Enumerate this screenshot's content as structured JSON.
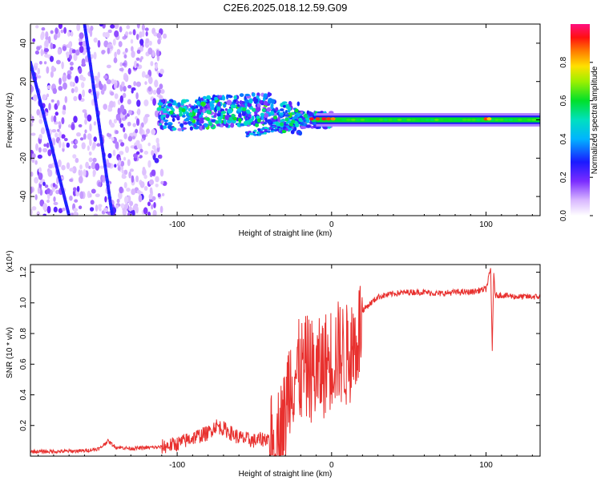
{
  "title": "C2E6.2025.018.12.59.G09",
  "colors": {
    "snr_line": "#e8302e",
    "track_trace": "#2a12e0",
    "frame": "#000000",
    "background": "#ffffff"
  },
  "chart_data": [
    {
      "type": "heatmap",
      "name": "spectrogram",
      "xlabel": "Height of straight line (km)",
      "ylabel": "Frequency (Hz)",
      "xlim": [
        -195,
        135
      ],
      "ylim": [
        -50,
        50
      ],
      "xticks": [
        -100,
        0,
        100
      ],
      "xtick_labels": [
        "-100",
        "0",
        "100"
      ],
      "yticks": [
        40,
        20,
        0,
        -20,
        -40
      ],
      "ytick_labels": [
        "40",
        "20",
        "0",
        "-20",
        "-40"
      ],
      "colorbar": {
        "label": "Normalized spectral amplitude",
        "range": [
          0,
          1
        ],
        "ticks": [
          0.0,
          0.2,
          0.4,
          0.6,
          0.8
        ],
        "tick_labels": [
          "0.0",
          "0.2",
          "0.4",
          "0.6",
          "0.8"
        ],
        "colormap": "rainbow (white-violet-blue-cyan-green-yellow-red-magenta)"
      },
      "features": [
        {
          "name": "steep-streak-1",
          "from": [
            -195,
            30
          ],
          "to": [
            -170,
            -50
          ]
        },
        {
          "name": "steep-streak-2",
          "from": [
            -160,
            50
          ],
          "to": [
            -142,
            -50
          ]
        },
        {
          "name": "noisy-scatter",
          "x_range": [
            -195,
            -110
          ],
          "y_range": [
            -50,
            50
          ]
        },
        {
          "name": "central-band",
          "x_range": [
            -110,
            0
          ],
          "y_range": [
            -15,
            15
          ]
        },
        {
          "name": "stable-band",
          "x_range": [
            0,
            135
          ],
          "center_hz": 0,
          "width_hz": 3
        }
      ]
    },
    {
      "type": "line",
      "name": "snr",
      "xlabel": "Height of straight line (km)",
      "ylabel": "SNR (10 * v/v)",
      "multiplier_label": "(x10⁴)",
      "xlim": [
        -195,
        135
      ],
      "ylim": [
        0,
        1.25
      ],
      "xticks": [
        -100,
        0,
        100
      ],
      "xtick_labels": [
        "-100",
        "0",
        "100"
      ],
      "yticks": [
        0.2,
        0.4,
        0.6,
        0.8,
        1.0,
        1.2
      ],
      "ytick_labels": [
        "0.2",
        "0.4",
        "0.6",
        "0.8",
        "1.0",
        "1.2"
      ],
      "series": [
        {
          "name": "SNR",
          "x": [
            -195,
            -180,
            -160,
            -150,
            -145,
            -140,
            -130,
            -110,
            -100,
            -90,
            -80,
            -75,
            -70,
            -60,
            -50,
            -40,
            -35,
            -30,
            -28,
            -25,
            -20,
            -15,
            -10,
            -5,
            0,
            5,
            10,
            15,
            20,
            30,
            40,
            50,
            60,
            70,
            80,
            90,
            100,
            103,
            104,
            105,
            106,
            110,
            120,
            135
          ],
          "values": [
            0.03,
            0.03,
            0.035,
            0.05,
            0.1,
            0.06,
            0.05,
            0.06,
            0.08,
            0.12,
            0.15,
            0.2,
            0.18,
            0.12,
            0.1,
            0.12,
            0.18,
            0.3,
            0.55,
            0.6,
            0.62,
            0.65,
            0.6,
            0.66,
            0.72,
            0.75,
            0.72,
            0.8,
            0.95,
            1.04,
            1.06,
            1.07,
            1.07,
            1.06,
            1.07,
            1.07,
            1.09,
            1.22,
            0.7,
            1.18,
            1.05,
            1.05,
            1.04,
            1.04
          ]
        }
      ]
    }
  ]
}
